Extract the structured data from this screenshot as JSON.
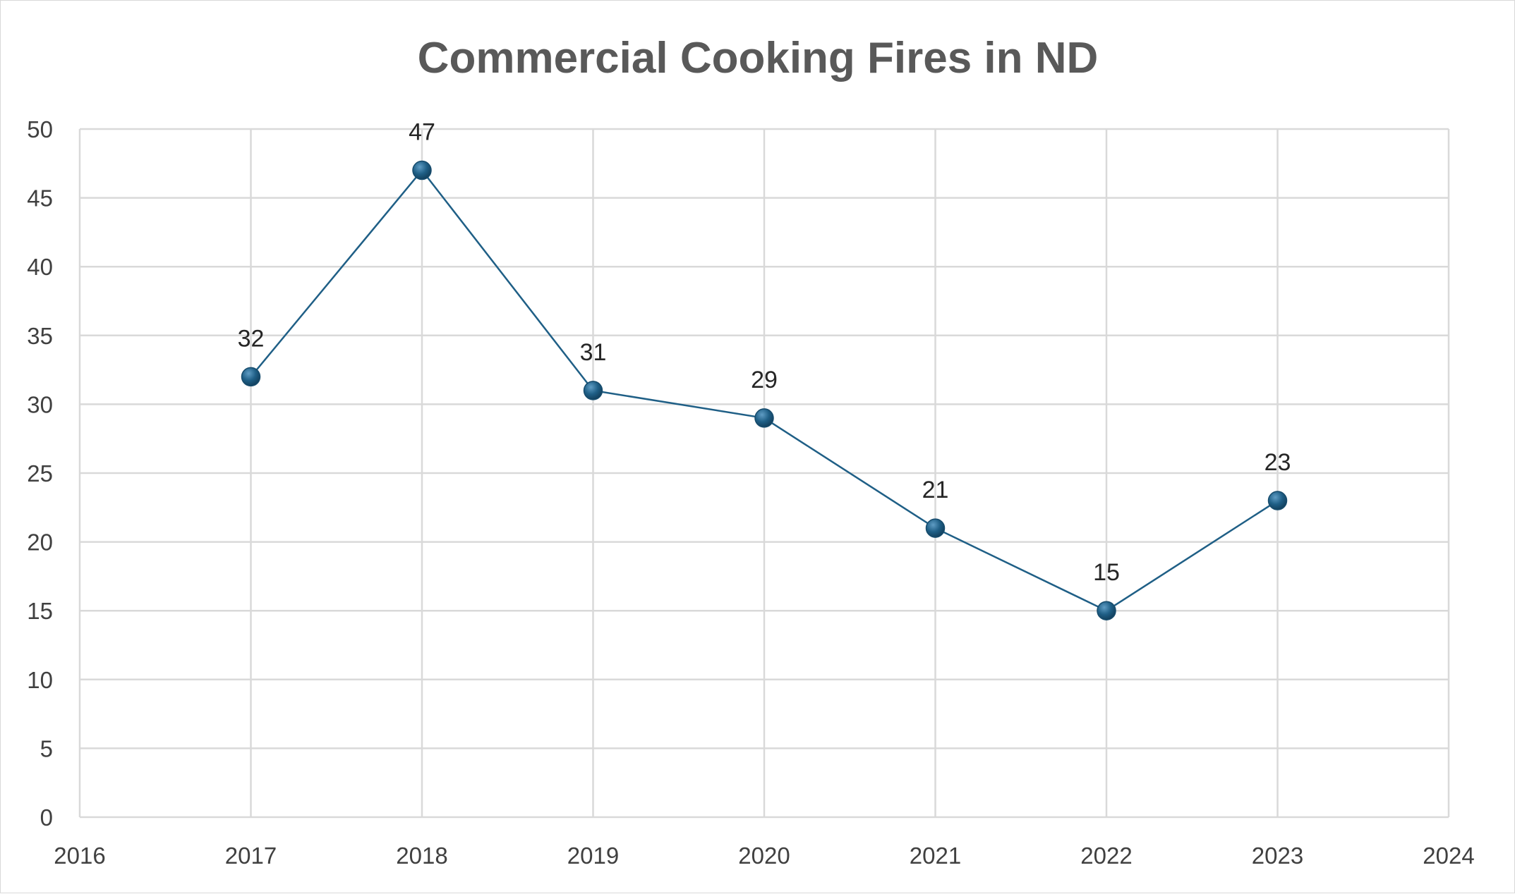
{
  "chart_data": {
    "type": "scatter",
    "title": "Commercial Cooking Fires in ND",
    "xlabel": "",
    "ylabel": "",
    "xlim": [
      2016,
      2024
    ],
    "ylim": [
      0,
      50
    ],
    "x_ticks": [
      2016,
      2017,
      2018,
      2019,
      2020,
      2021,
      2022,
      2023,
      2024
    ],
    "y_ticks": [
      0,
      5,
      10,
      15,
      20,
      25,
      30,
      35,
      40,
      45,
      50
    ],
    "grid": true,
    "legend": "none",
    "series": [
      {
        "x": [
          2017,
          2018,
          2019,
          2020,
          2021,
          2022,
          2023
        ],
        "y": [
          32,
          47,
          31,
          29,
          21,
          15,
          23
        ],
        "color": "#1f5f86",
        "marker": "circle",
        "data_labels": true
      }
    ]
  }
}
